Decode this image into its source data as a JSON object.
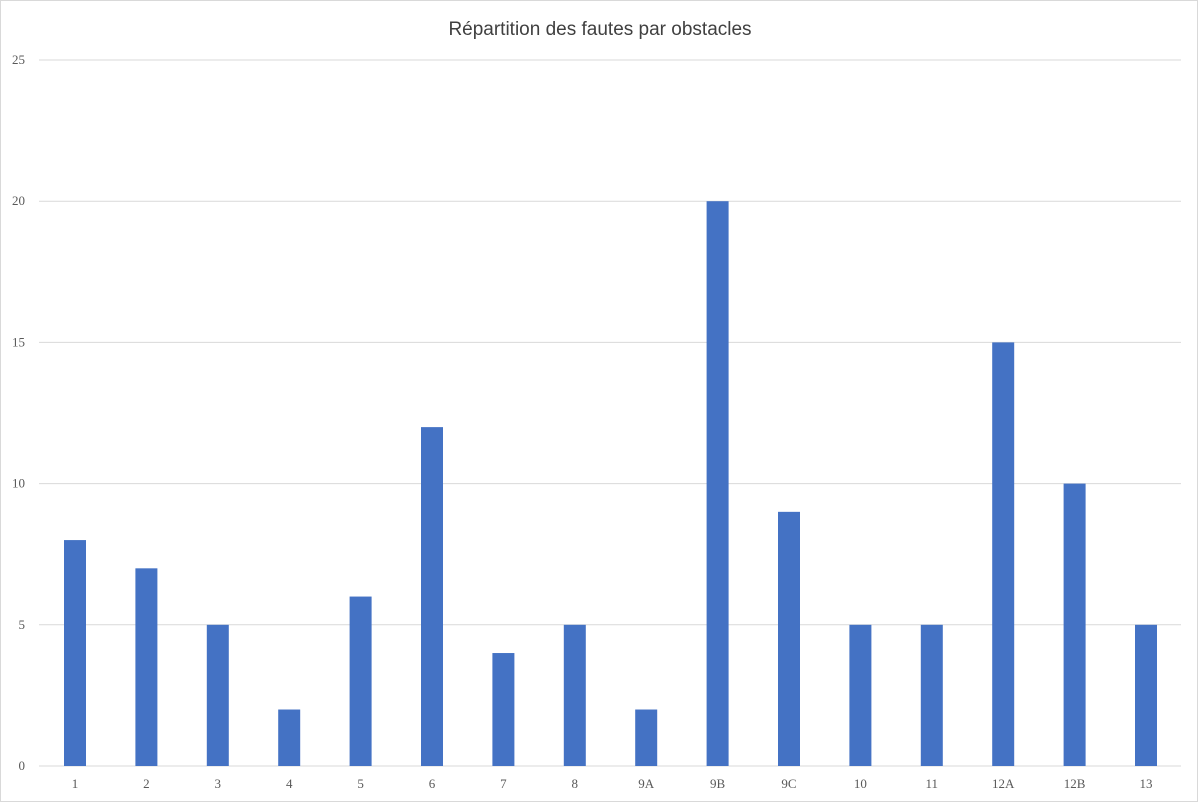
{
  "chart_data": {
    "type": "bar",
    "title": "Répartition des fautes par obstacles",
    "xlabel": "",
    "ylabel": "",
    "categories": [
      "1",
      "2",
      "3",
      "4",
      "5",
      "6",
      "7",
      "8",
      "9A",
      "9B",
      "9C",
      "10",
      "11",
      "12A",
      "12B",
      "13"
    ],
    "values": [
      8,
      7,
      5,
      2,
      6,
      12,
      4,
      5,
      2,
      20,
      9,
      5,
      5,
      15,
      10,
      5
    ],
    "ylim": [
      0,
      25
    ],
    "yticks": [
      0,
      5,
      10,
      15,
      20,
      25
    ],
    "grid": true,
    "legend": "none",
    "colors": {
      "bar": "#4472C4",
      "grid": "#d9d9d9",
      "axis": "#d9d9d9"
    }
  }
}
